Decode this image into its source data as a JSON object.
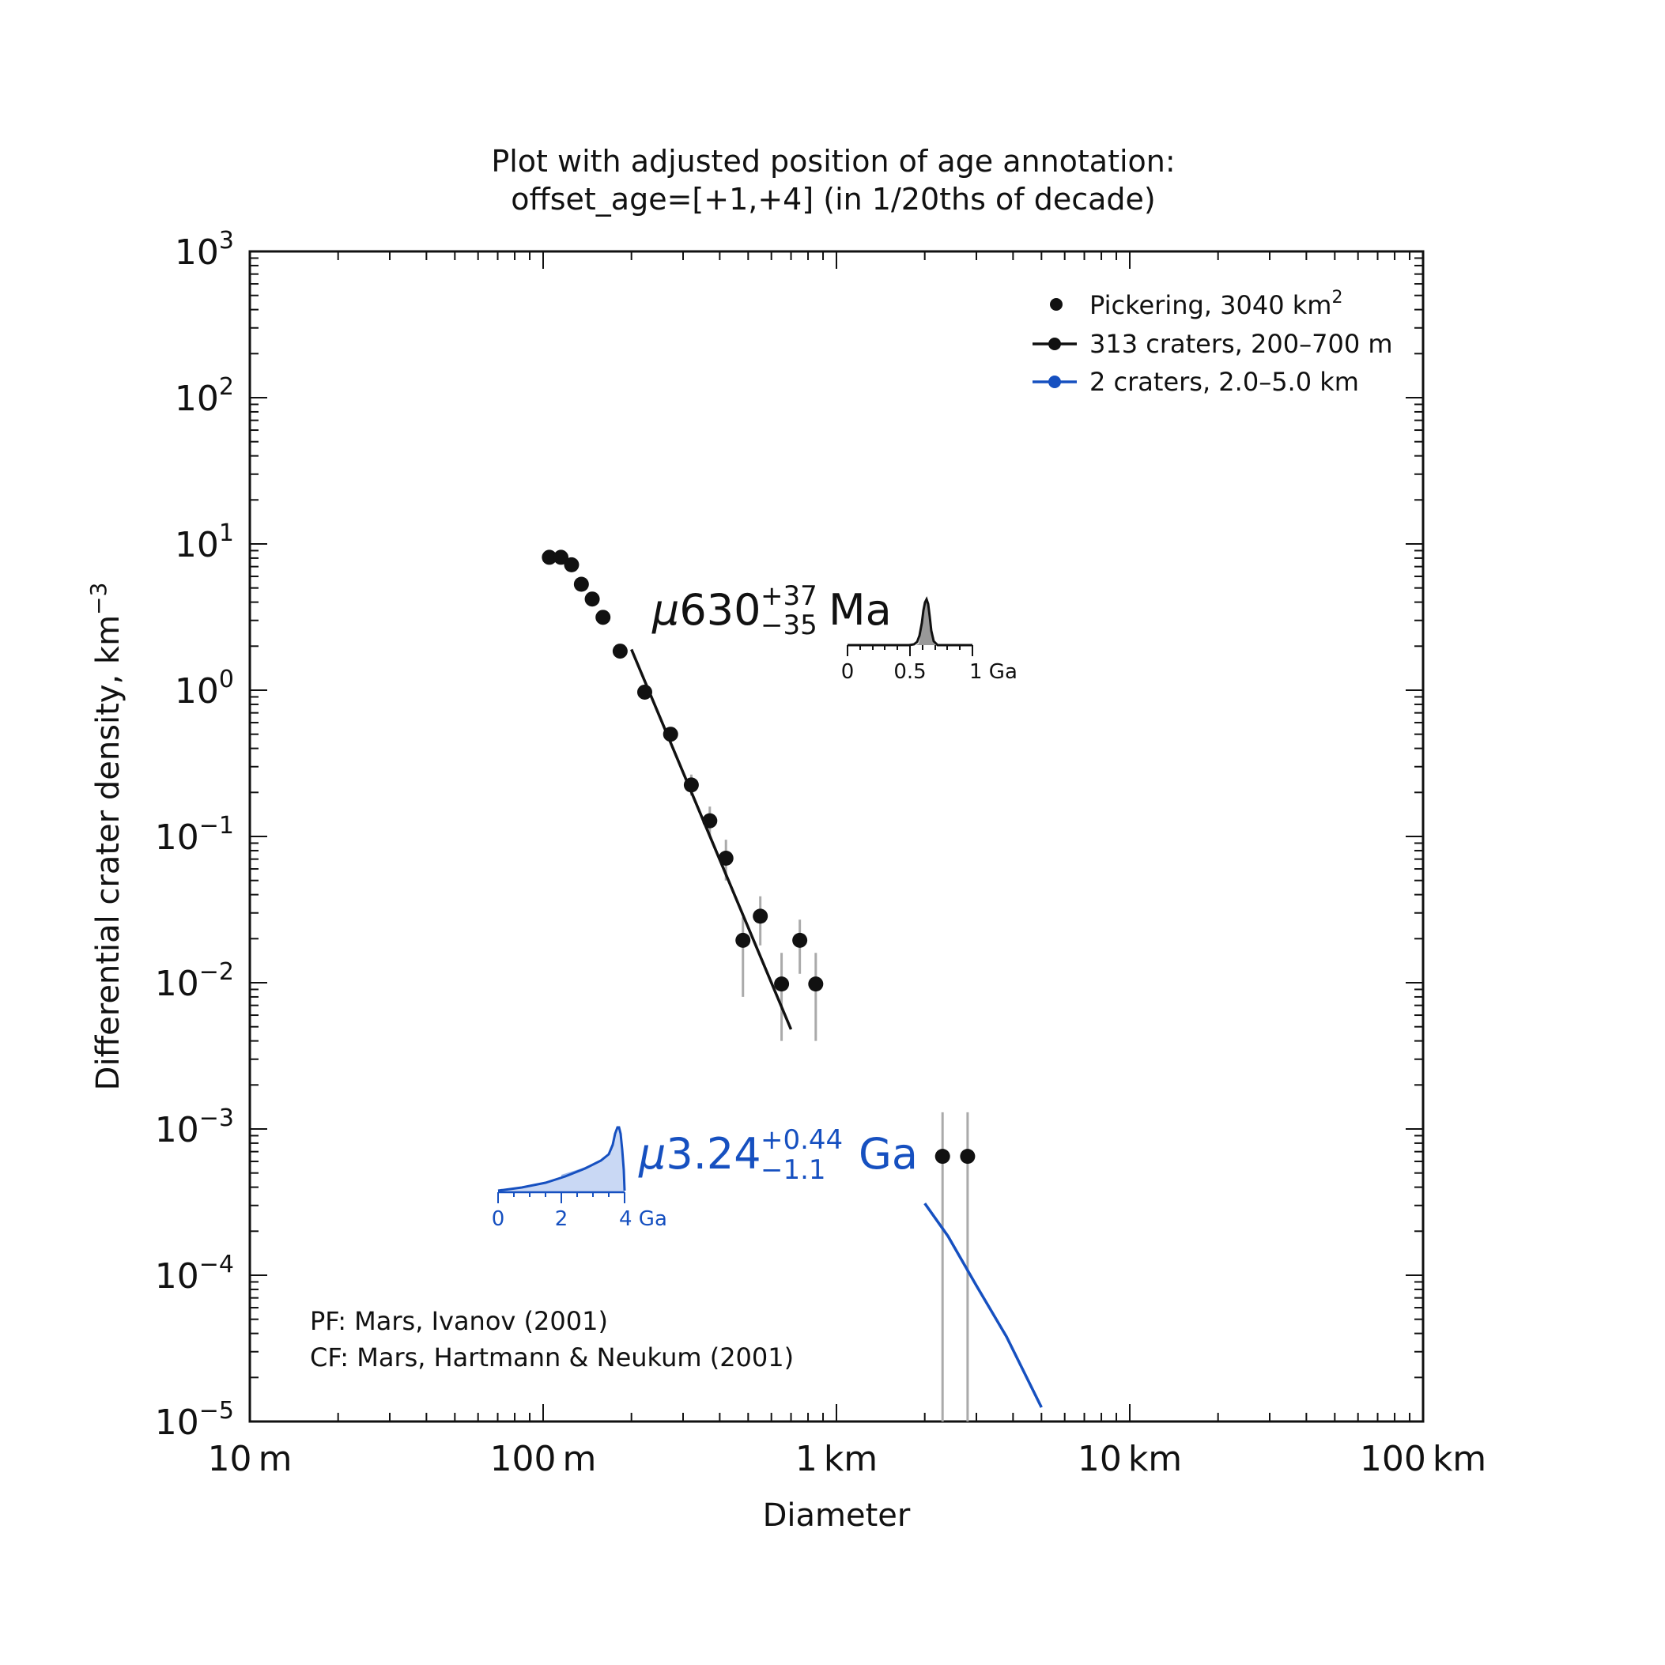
{
  "chart_data": {
    "type": "scatter",
    "title_line1": "Plot with adjusted position of age annotation:",
    "title_line2": "offset_age=[+1,+4] (in 1/20ths of decade)",
    "xlabel": "Diameter",
    "ylabel_main": "Differential crater density, km",
    "ylabel_sup": "−3",
    "x_scale": "log",
    "y_scale": "log",
    "xlim_km": [
      0.01,
      100
    ],
    "ylim": [
      1e-05,
      1000
    ],
    "x_ticks": [
      {
        "value_km": 0.01,
        "num": "10",
        "unit": "m"
      },
      {
        "value_km": 0.1,
        "num": "100",
        "unit": "m"
      },
      {
        "value_km": 1,
        "num": "1",
        "unit": "km"
      },
      {
        "value_km": 10,
        "num": "10",
        "unit": "km"
      },
      {
        "value_km": 100,
        "num": "100",
        "unit": "km"
      }
    ],
    "y_ticks": [
      {
        "exp": -5,
        "base": "10",
        "sup": "−5"
      },
      {
        "exp": -4,
        "base": "10",
        "sup": "−4"
      },
      {
        "exp": -3,
        "base": "10",
        "sup": "−3"
      },
      {
        "exp": -2,
        "base": "10",
        "sup": "−2"
      },
      {
        "exp": -1,
        "base": "10",
        "sup": "−1"
      },
      {
        "exp": 0,
        "base": "10",
        "sup": "0"
      },
      {
        "exp": 1,
        "base": "10",
        "sup": "1"
      },
      {
        "exp": 2,
        "base": "10",
        "sup": "2"
      },
      {
        "exp": 3,
        "base": "10",
        "sup": "3"
      }
    ],
    "points": [
      {
        "d": 0.105,
        "y": 8.1
      },
      {
        "d": 0.115,
        "y": 8.1
      },
      {
        "d": 0.125,
        "y": 7.2
      },
      {
        "d": 0.135,
        "y": 5.3
      },
      {
        "d": 0.147,
        "y": 4.2
      },
      {
        "d": 0.16,
        "y": 3.15
      },
      {
        "d": 0.183,
        "y": 1.85
      },
      {
        "d": 0.222,
        "y": 0.97
      },
      {
        "d": 0.272,
        "y": 0.5
      },
      {
        "d": 0.32,
        "y": 0.225,
        "err": [
          0.19,
          0.265
        ]
      },
      {
        "d": 0.37,
        "y": 0.128,
        "err": [
          0.1,
          0.16
        ]
      },
      {
        "d": 0.42,
        "y": 0.071,
        "err": [
          0.05,
          0.095
        ]
      },
      {
        "d": 0.48,
        "y": 0.0195,
        "err": [
          0.008,
          0.028
        ]
      },
      {
        "d": 0.55,
        "y": 0.0285,
        "err": [
          0.018,
          0.039
        ]
      },
      {
        "d": 0.65,
        "y": 0.0098,
        "err": [
          0.004,
          0.016
        ]
      },
      {
        "d": 0.75,
        "y": 0.0195,
        "err": [
          0.0115,
          0.027
        ]
      },
      {
        "d": 0.85,
        "y": 0.0098,
        "err": [
          0.004,
          0.016
        ]
      },
      {
        "d": 2.3,
        "y": 0.00065,
        "err": [
          1e-05,
          0.0013
        ]
      },
      {
        "d": 2.8,
        "y": 0.00065,
        "err": [
          1e-05,
          0.0013
        ]
      }
    ],
    "fit_black": [
      {
        "d": 0.2,
        "y": 1.9
      },
      {
        "d": 0.7,
        "y": 0.0048
      }
    ],
    "fit_blue": [
      {
        "d": 2.0,
        "y": 0.00031
      },
      {
        "d": 2.4,
        "y": 0.000185
      },
      {
        "d": 3.0,
        "y": 8.5e-05
      },
      {
        "d": 3.8,
        "y": 3.8e-05
      },
      {
        "d": 5.0,
        "y": 1.25e-05
      }
    ],
    "legend": {
      "placement": "top-right",
      "entries": [
        {
          "label": "Pickering, 3040 km",
          "sup": "2",
          "style": "marker",
          "color": "#111111"
        },
        {
          "label": "313 craters, 200–700 m",
          "sup": "",
          "style": "line-marker",
          "color": "#111111"
        },
        {
          "label": "2 craters, 2.0–5.0 km",
          "sup": "",
          "style": "line-marker",
          "color": "#1650c0"
        }
      ]
    },
    "age_black": {
      "prefix": "μ",
      "value": "630",
      "plus": "+37",
      "minus": "−35",
      "unit": "Ma",
      "color": "#111111",
      "inset_ticks": [
        "0",
        "0.5",
        "1 Ga"
      ]
    },
    "age_blue": {
      "prefix": "μ",
      "value": "3.24",
      "plus": "+0.44",
      "minus": "−1.1",
      "unit": "Ga",
      "color": "#1650c0",
      "inset_ticks": [
        "0",
        "2",
        "4 Ga"
      ]
    },
    "functions_note": {
      "pf": "PF: Mars, Ivanov (2001)",
      "cf": "CF: Mars, Hartmann & Neukum (2001)"
    },
    "grid": false
  }
}
